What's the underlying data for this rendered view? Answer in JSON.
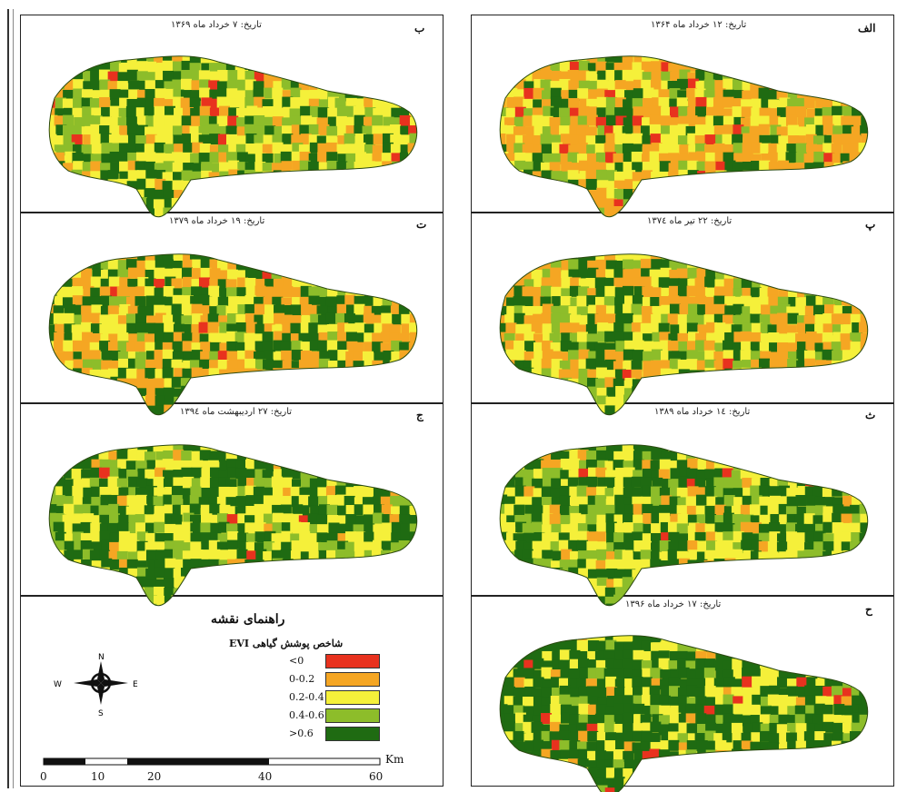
{
  "panels": [
    {
      "letter": "الف",
      "date": "تاریخ: ۱۲ خرداد ماه ۱۳۶۴",
      "dominant": "orange"
    },
    {
      "letter": "ب",
      "date": "تاریخ: ۷ خرداد ماه ۱۳۶۹",
      "dominant": "light-green"
    },
    {
      "letter": "پ",
      "date": "تاریخ: ۲۲ تیر ماه ۱۳۷٤",
      "dominant": "yellow-orange"
    },
    {
      "letter": "ت",
      "date": "تاریخ: ۱۹ خرداد ماه ۱۳۷۹",
      "dominant": "orange-green"
    },
    {
      "letter": "ث",
      "date": "تاریخ: ۱٤ خرداد ماه ۱۳۸۹",
      "dominant": "green"
    },
    {
      "letter": "ج",
      "date": "تاریخ: ۲۷ اردیبهشت ماه ۱۳۹٤",
      "dominant": "green-yellow"
    },
    {
      "letter": "ح",
      "date": "تاریخ: ۱۷ خرداد ماه ۱۳۹۶",
      "dominant": "dark-green"
    }
  ],
  "legend": {
    "title": "راهنمای نقشه",
    "subtitle": "شاخص پوشش گیاهی EVI",
    "classes": [
      {
        "label": "<0",
        "color": "#e8321e"
      },
      {
        "label": "0-0.2",
        "color": "#f5a623"
      },
      {
        "label": "0.2-0.4",
        "color": "#f5f03a"
      },
      {
        "label": "0.4-0.6",
        "color": "#8dbd2a"
      },
      {
        "label": ">0.6",
        "color": "#1f6b12"
      }
    ]
  },
  "compass": {
    "n": "N",
    "s": "S",
    "e": "E",
    "w": "W"
  },
  "scalebar": {
    "unit": "Km",
    "ticks": [
      "0",
      "10",
      "20",
      "40",
      "60"
    ]
  }
}
